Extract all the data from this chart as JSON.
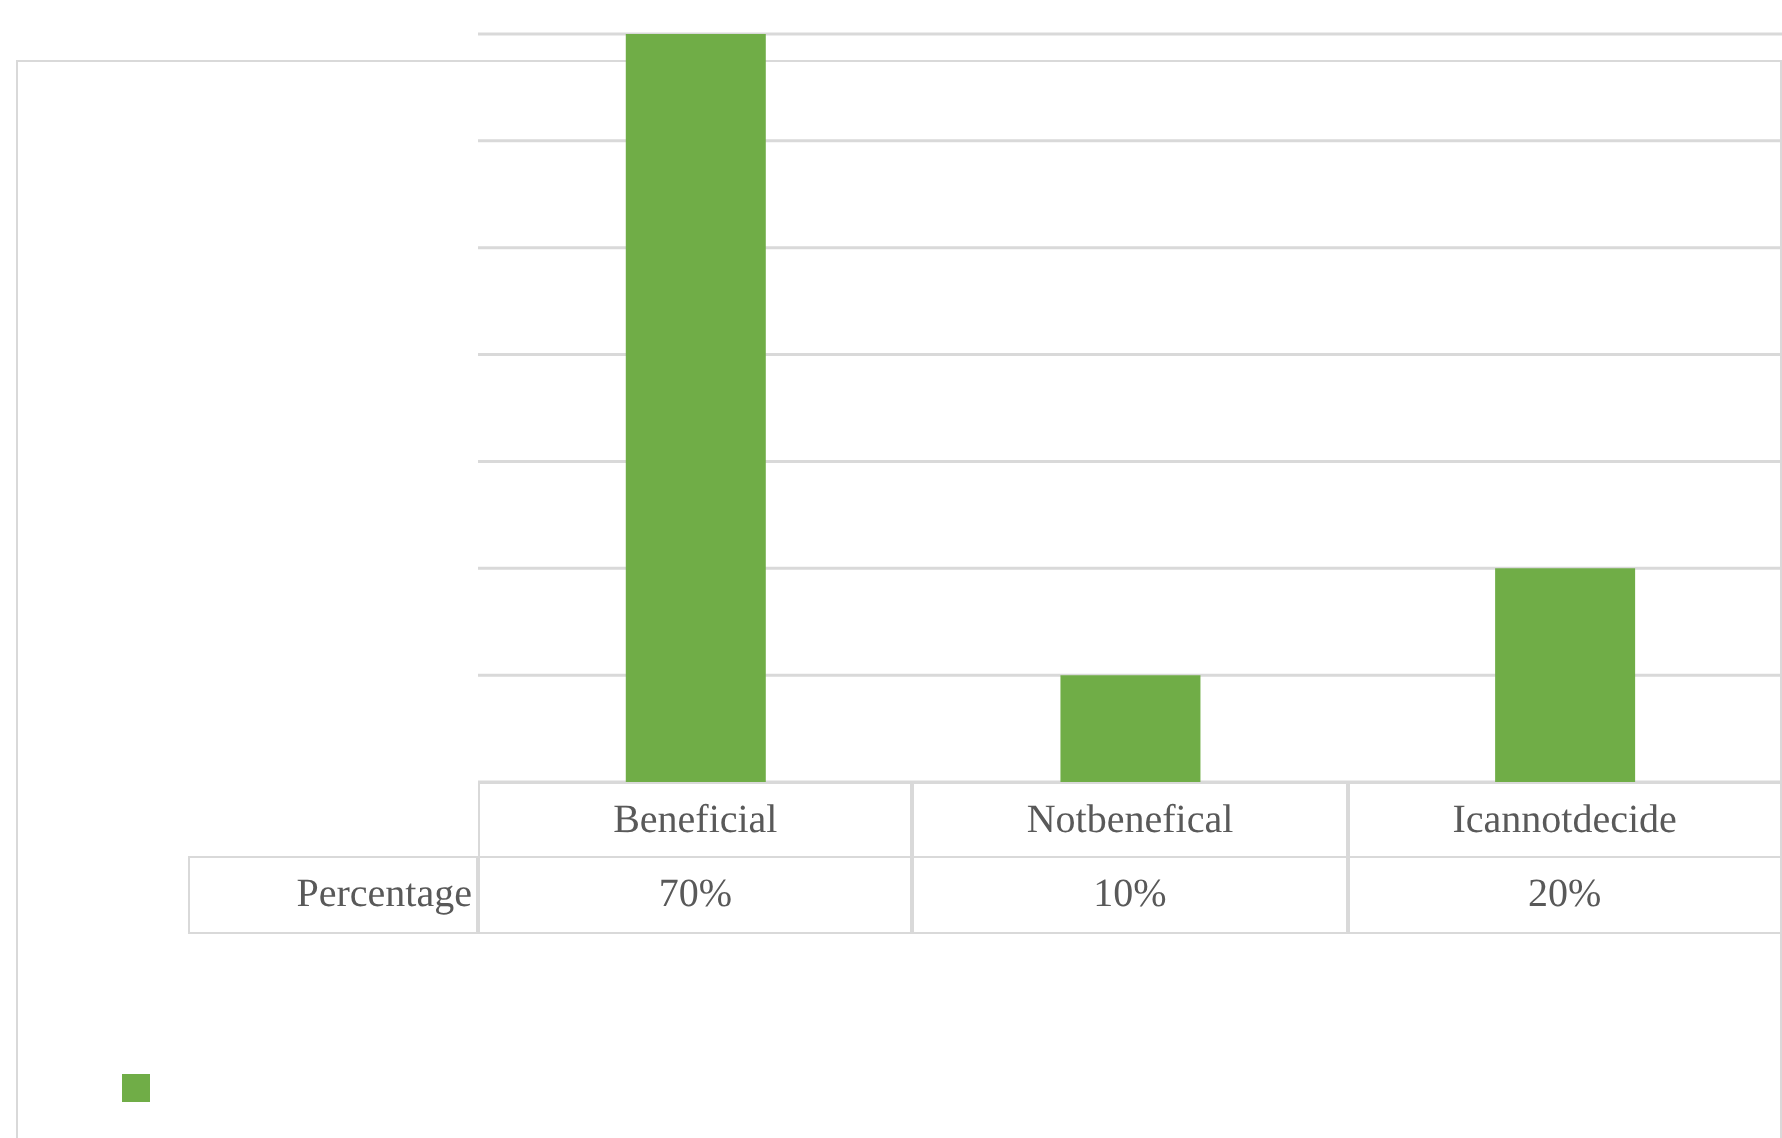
{
  "chart_data": {
    "type": "bar",
    "categories": [
      "Beneficial",
      "Notbenefical",
      "Icannotdecide"
    ],
    "series": [
      {
        "name": "Percentage",
        "color": "#70ad47",
        "values": [
          70,
          10,
          20
        ],
        "value_labels": [
          "70%",
          "10%",
          "20%"
        ]
      }
    ],
    "ylim": [
      0,
      70
    ],
    "yticks": [
      {
        "value": 0,
        "label": null
      },
      {
        "value": 10,
        "label": null
      },
      {
        "value": 20,
        "label": null
      },
      {
        "value": 30,
        "label": null
      },
      {
        "value": 40,
        "label": null
      },
      {
        "value": 50,
        "label": null
      },
      {
        "value": 60,
        "label": null
      },
      {
        "value": 70,
        "label": null
      }
    ],
    "grid": true,
    "legend": "bottom left",
    "tick_labels": "x"
  }
}
